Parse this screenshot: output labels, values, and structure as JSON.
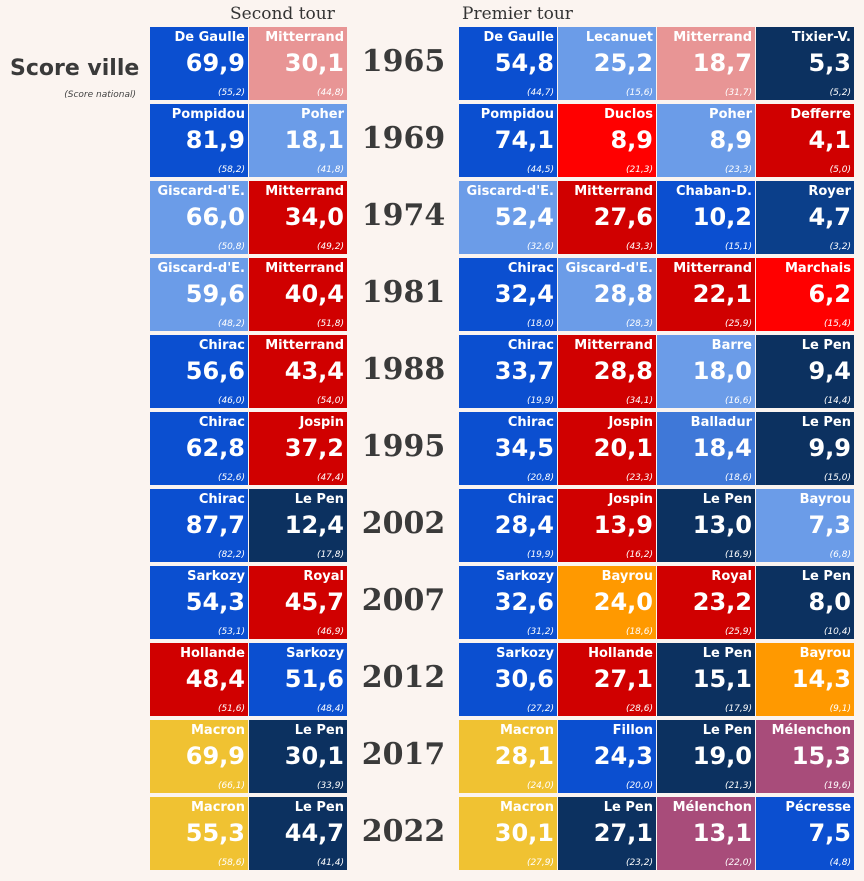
{
  "header": {
    "second_round": "Second tour",
    "first_round": "Premier tour"
  },
  "legend": {
    "title": "Score ville",
    "subtitle": "(Score national)"
  },
  "colors": {
    "gaullist_blue": "#0b4fd0",
    "light_blue": "#6b9ce8",
    "pink": "#e89595",
    "red": "#d00000",
    "bright_red": "#ff0000",
    "navy": "#0c3160",
    "orange": "#ff9900",
    "yellow": "#f0c232",
    "purple": "#a84c7a",
    "steel_blue": "#3f78d8"
  },
  "chart_data": {
    "type": "table",
    "title": "Score ville (Score national)",
    "rows": [
      {
        "year": "1965",
        "second": [
          {
            "name": "De Gaulle",
            "score": "69,9",
            "national": "(55,2)",
            "color": "#0b4fd0"
          },
          {
            "name": "Mitterrand",
            "score": "30,1",
            "national": "(44,8)",
            "color": "#e89595"
          }
        ],
        "first": [
          {
            "name": "De Gaulle",
            "score": "54,8",
            "national": "(44,7)",
            "color": "#0b4fd0"
          },
          {
            "name": "Lecanuet",
            "score": "25,2",
            "national": "(15,6)",
            "color": "#6b9ce8"
          },
          {
            "name": "Mitterrand",
            "score": "18,7",
            "national": "(31,7)",
            "color": "#e89595"
          },
          {
            "name": "Tixier-V.",
            "score": "5,3",
            "national": "(5,2)",
            "color": "#0c3160"
          }
        ]
      },
      {
        "year": "1969",
        "second": [
          {
            "name": "Pompidou",
            "score": "81,9",
            "national": "(58,2)",
            "color": "#0b4fd0"
          },
          {
            "name": "Poher",
            "score": "18,1",
            "national": "(41,8)",
            "color": "#6b9ce8"
          }
        ],
        "first": [
          {
            "name": "Pompidou",
            "score": "74,1",
            "national": "(44,5)",
            "color": "#0b4fd0"
          },
          {
            "name": "Duclos",
            "score": "8,9",
            "national": "(21,3)",
            "color": "#ff0000"
          },
          {
            "name": "Poher",
            "score": "8,9",
            "national": "(23,3)",
            "color": "#6b9ce8"
          },
          {
            "name": "Defferre",
            "score": "4,1",
            "national": "(5,0)",
            "color": "#d00000"
          }
        ]
      },
      {
        "year": "1974",
        "second": [
          {
            "name": "Giscard-d'E.",
            "score": "66,0",
            "national": "(50,8)",
            "color": "#6b9ce8"
          },
          {
            "name": "Mitterrand",
            "score": "34,0",
            "national": "(49,2)",
            "color": "#d00000"
          }
        ],
        "first": [
          {
            "name": "Giscard-d'E.",
            "score": "52,4",
            "national": "(32,6)",
            "color": "#6b9ce8"
          },
          {
            "name": "Mitterrand",
            "score": "27,6",
            "national": "(43,3)",
            "color": "#d00000"
          },
          {
            "name": "Chaban-D.",
            "score": "10,2",
            "national": "(15,1)",
            "color": "#0b4fd0"
          },
          {
            "name": "Royer",
            "score": "4,7",
            "national": "(3,2)",
            "color": "#0b3f8a"
          }
        ]
      },
      {
        "year": "1981",
        "second": [
          {
            "name": "Giscard-d'E.",
            "score": "59,6",
            "national": "(48,2)",
            "color": "#6b9ce8"
          },
          {
            "name": "Mitterrand",
            "score": "40,4",
            "national": "(51,8)",
            "color": "#d00000"
          }
        ],
        "first": [
          {
            "name": "Chirac",
            "score": "32,4",
            "national": "(18,0)",
            "color": "#0b4fd0"
          },
          {
            "name": "Giscard-d'E.",
            "score": "28,8",
            "national": "(28,3)",
            "color": "#6b9ce8"
          },
          {
            "name": "Mitterrand",
            "score": "22,1",
            "national": "(25,9)",
            "color": "#d00000"
          },
          {
            "name": "Marchais",
            "score": "6,2",
            "national": "(15,4)",
            "color": "#ff0000"
          }
        ]
      },
      {
        "year": "1988",
        "second": [
          {
            "name": "Chirac",
            "score": "56,6",
            "national": "(46,0)",
            "color": "#0b4fd0"
          },
          {
            "name": "Mitterrand",
            "score": "43,4",
            "national": "(54,0)",
            "color": "#d00000"
          }
        ],
        "first": [
          {
            "name": "Chirac",
            "score": "33,7",
            "national": "(19,9)",
            "color": "#0b4fd0"
          },
          {
            "name": "Mitterrand",
            "score": "28,8",
            "national": "(34,1)",
            "color": "#d00000"
          },
          {
            "name": "Barre",
            "score": "18,0",
            "national": "(16,6)",
            "color": "#6b9ce8"
          },
          {
            "name": "Le Pen",
            "score": "9,4",
            "national": "(14,4)",
            "color": "#0c3160"
          }
        ]
      },
      {
        "year": "1995",
        "second": [
          {
            "name": "Chirac",
            "score": "62,8",
            "national": "(52,6)",
            "color": "#0b4fd0"
          },
          {
            "name": "Jospin",
            "score": "37,2",
            "national": "(47,4)",
            "color": "#d00000"
          }
        ],
        "first": [
          {
            "name": "Chirac",
            "score": "34,5",
            "national": "(20,8)",
            "color": "#0b4fd0"
          },
          {
            "name": "Jospin",
            "score": "20,1",
            "national": "(23,3)",
            "color": "#d00000"
          },
          {
            "name": "Balladur",
            "score": "18,4",
            "national": "(18,6)",
            "color": "#3f78d8"
          },
          {
            "name": "Le Pen",
            "score": "9,9",
            "national": "(15,0)",
            "color": "#0c3160"
          }
        ]
      },
      {
        "year": "2002",
        "second": [
          {
            "name": "Chirac",
            "score": "87,7",
            "national": "(82,2)",
            "color": "#0b4fd0"
          },
          {
            "name": "Le Pen",
            "score": "12,4",
            "national": "(17,8)",
            "color": "#0c3160"
          }
        ],
        "first": [
          {
            "name": "Chirac",
            "score": "28,4",
            "national": "(19,9)",
            "color": "#0b4fd0"
          },
          {
            "name": "Jospin",
            "score": "13,9",
            "national": "(16,2)",
            "color": "#d00000"
          },
          {
            "name": "Le Pen",
            "score": "13,0",
            "national": "(16,9)",
            "color": "#0c3160"
          },
          {
            "name": "Bayrou",
            "score": "7,3",
            "national": "(6,8)",
            "color": "#6b9ce8"
          }
        ]
      },
      {
        "year": "2007",
        "second": [
          {
            "name": "Sarkozy",
            "score": "54,3",
            "national": "(53,1)",
            "color": "#0b4fd0"
          },
          {
            "name": "Royal",
            "score": "45,7",
            "national": "(46,9)",
            "color": "#d00000"
          }
        ],
        "first": [
          {
            "name": "Sarkozy",
            "score": "32,6",
            "national": "(31,2)",
            "color": "#0b4fd0"
          },
          {
            "name": "Bayrou",
            "score": "24,0",
            "national": "(18,6)",
            "color": "#ff9900"
          },
          {
            "name": "Royal",
            "score": "23,2",
            "national": "(25,9)",
            "color": "#d00000"
          },
          {
            "name": "Le Pen",
            "score": "8,0",
            "national": "(10,4)",
            "color": "#0c3160"
          }
        ]
      },
      {
        "year": "2012",
        "second": [
          {
            "name": "Hollande",
            "score": "48,4",
            "national": "(51,6)",
            "color": "#d00000"
          },
          {
            "name": "Sarkozy",
            "score": "51,6",
            "national": "(48,4)",
            "color": "#0b4fd0"
          }
        ],
        "first": [
          {
            "name": "Sarkozy",
            "score": "30,6",
            "national": "(27,2)",
            "color": "#0b4fd0"
          },
          {
            "name": "Hollande",
            "score": "27,1",
            "national": "(28,6)",
            "color": "#d00000"
          },
          {
            "name": "Le Pen",
            "score": "15,1",
            "national": "(17,9)",
            "color": "#0c3160"
          },
          {
            "name": "Bayrou",
            "score": "14,3",
            "national": "(9,1)",
            "color": "#ff9900"
          }
        ]
      },
      {
        "year": "2017",
        "second": [
          {
            "name": "Macron",
            "score": "69,9",
            "national": "(66,1)",
            "color": "#f0c232"
          },
          {
            "name": "Le Pen",
            "score": "30,1",
            "national": "(33,9)",
            "color": "#0c3160"
          }
        ],
        "first": [
          {
            "name": "Macron",
            "score": "28,1",
            "national": "(24,0)",
            "color": "#f0c232"
          },
          {
            "name": "Fillon",
            "score": "24,3",
            "national": "(20,0)",
            "color": "#0b4fd0"
          },
          {
            "name": "Le Pen",
            "score": "19,0",
            "national": "(21,3)",
            "color": "#0c3160"
          },
          {
            "name": "Mélenchon",
            "score": "15,3",
            "national": "(19,6)",
            "color": "#a84c7a"
          }
        ]
      },
      {
        "year": "2022",
        "second": [
          {
            "name": "Macron",
            "score": "55,3",
            "national": "(58,6)",
            "color": "#f0c232"
          },
          {
            "name": "Le Pen",
            "score": "44,7",
            "national": "(41,4)",
            "color": "#0c3160"
          }
        ],
        "first": [
          {
            "name": "Macron",
            "score": "30,1",
            "national": "(27,9)",
            "color": "#f0c232"
          },
          {
            "name": "Le Pen",
            "score": "27,1",
            "national": "(23,2)",
            "color": "#0c3160"
          },
          {
            "name": "Mélenchon",
            "score": "13,1",
            "national": "(22,0)",
            "color": "#a84c7a"
          },
          {
            "name": "Pécresse",
            "score": "7,5",
            "national": "(4,8)",
            "color": "#0b4fd0"
          }
        ]
      }
    ]
  }
}
